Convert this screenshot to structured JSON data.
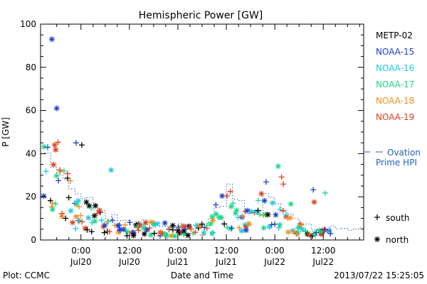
{
  "chart_data": {
    "type": "scatter",
    "title": "Hemispheric Power [GW]",
    "ylabel": "P [GW]",
    "xlabel": "Date and Time",
    "ylim": [
      0,
      100
    ],
    "xlim": [
      -10,
      70
    ],
    "x_units": "hours since 2013-07-20 00:00",
    "yticks": [
      0,
      20,
      40,
      60,
      80,
      100
    ],
    "xticks": [
      {
        "hour": 0,
        "time": "0:00",
        "date": "Jul20"
      },
      {
        "hour": 12,
        "time": "12:00",
        "date": "Jul20"
      },
      {
        "hour": 24,
        "time": "0:00",
        "date": "Jul21"
      },
      {
        "hour": 36,
        "time": "12:00",
        "date": "Jul21"
      },
      {
        "hour": 48,
        "time": "0:00",
        "date": "Jul22"
      },
      {
        "hour": 60,
        "time": "12:00",
        "date": "Jul22"
      }
    ],
    "series": [
      {
        "name": "METP-02",
        "color": "#000000"
      },
      {
        "name": "NOAA-15",
        "color": "#2040c8"
      },
      {
        "name": "NOAA-16",
        "color": "#22c8e6"
      },
      {
        "name": "NOAA-17",
        "color": "#1fd68a"
      },
      {
        "name": "NOAA-18",
        "color": "#f09020"
      },
      {
        "name": "NOAA-19",
        "color": "#e0401c"
      }
    ],
    "legend_position": "right",
    "ovation": {
      "label_line1": "Ovation",
      "label_line2": "Prime HPI",
      "color": "#2060c0",
      "style": "dotted-step"
    },
    "markers": {
      "plus_label": "south",
      "star_label": "north"
    },
    "footer_left": "Plot: CCMC",
    "footer_right": "2013/07/22 15:25:05"
  }
}
